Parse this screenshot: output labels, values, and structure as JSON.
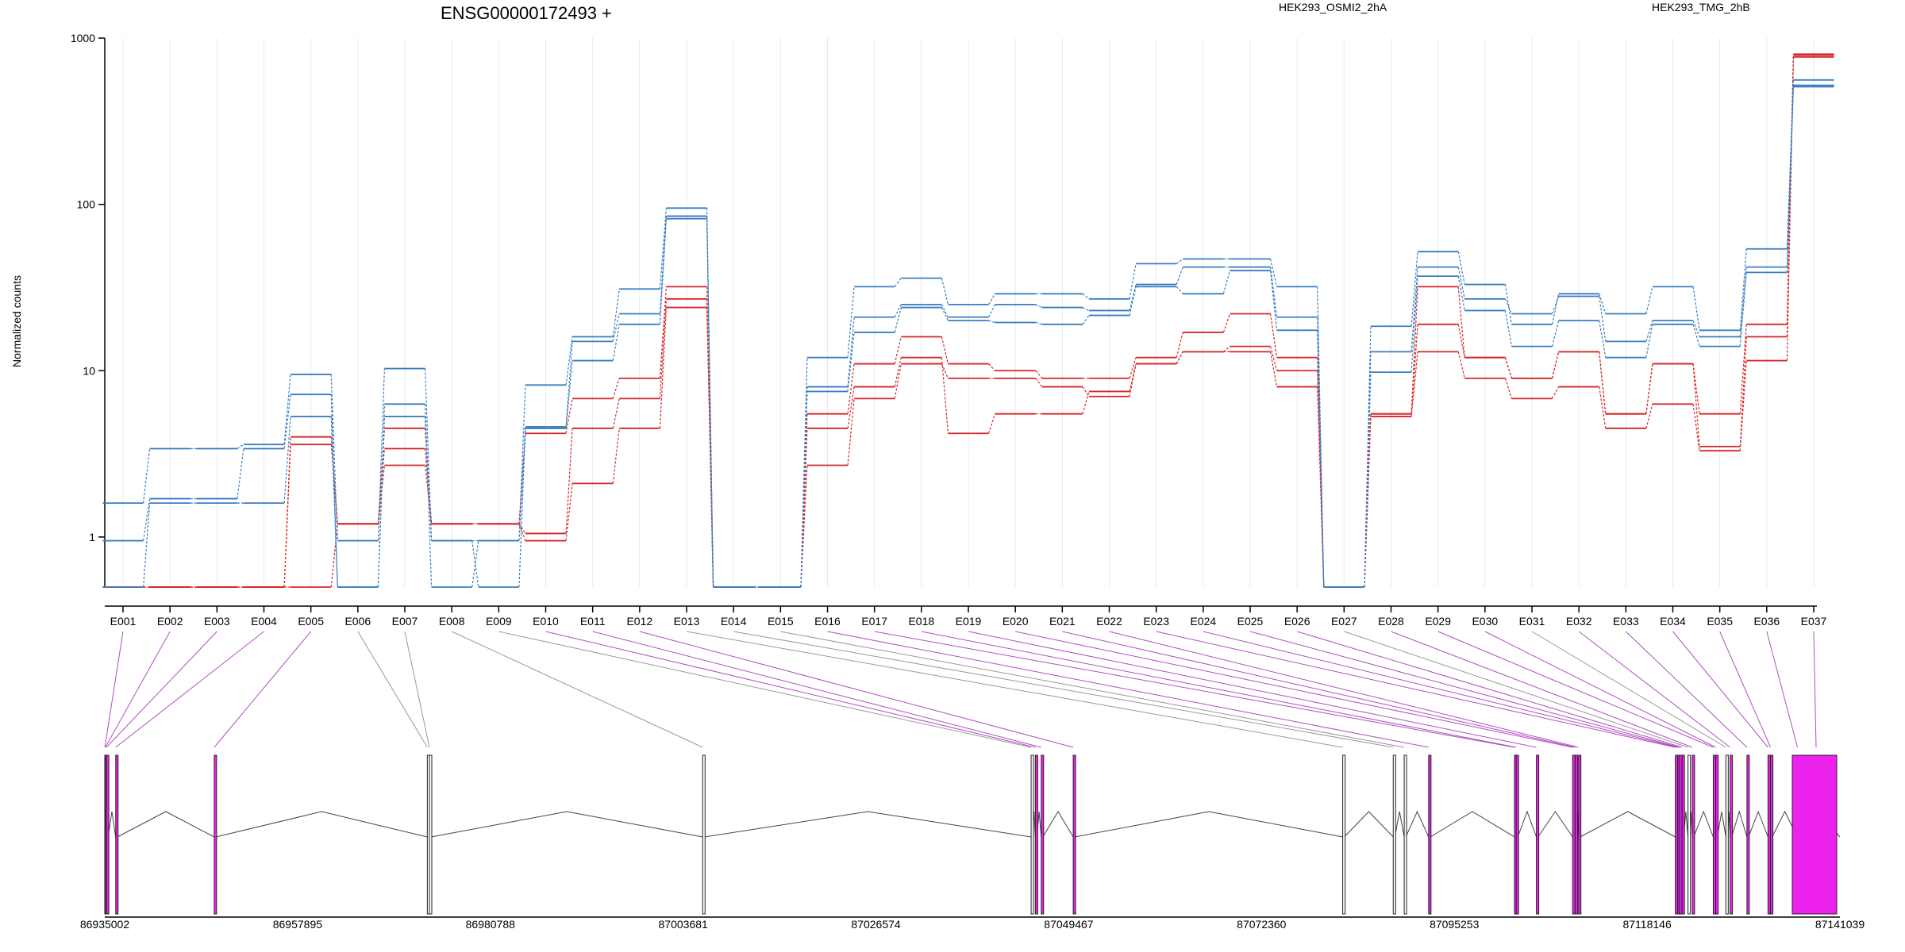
{
  "chart_data": {
    "type": "line",
    "title": "ENSG00000172493 +",
    "ylabel": "Normalized counts",
    "xlabel": "",
    "y_scale": "log",
    "ylim": [
      0.5,
      1000
    ],
    "y_ticks": [
      "1000",
      "100",
      "10",
      "1"
    ],
    "y_tick_values": [
      1000,
      100,
      10,
      1
    ],
    "grid": "vertical lines at each exon",
    "legend_placement": "top",
    "categories": [
      "E001",
      "E002",
      "E003",
      "E004",
      "E005",
      "E006",
      "E007",
      "E008",
      "E009",
      "E010",
      "E011",
      "E012",
      "E013",
      "E014",
      "E015",
      "E016",
      "E017",
      "E018",
      "E019",
      "E020",
      "E021",
      "E022",
      "E023",
      "E024",
      "E025",
      "E026",
      "E027",
      "E028",
      "E029",
      "E030",
      "E031",
      "E032",
      "E033",
      "E034",
      "E035",
      "E036",
      "E037"
    ],
    "series": [
      {
        "name": "HEK293_OSMI2_2hA",
        "color": "#d62728",
        "values": [
          0.5,
          0.5,
          0.5,
          0.5,
          4.0,
          1.2,
          4.5,
          1.2,
          1.2,
          4.2,
          6.8,
          9.0,
          32,
          0.5,
          0.5,
          5.5,
          11,
          16,
          11,
          10,
          9,
          9,
          12,
          17,
          22,
          12,
          0.5,
          5.5,
          32,
          12,
          9,
          13,
          5.5,
          11,
          5.5,
          19,
          800
        ]
      },
      {
        "name": "HEK293_OSMI2_2hA",
        "color": "#d62728",
        "values": [
          0.5,
          0.5,
          0.5,
          0.5,
          3.6,
          1.2,
          3.4,
          1.2,
          1.2,
          1.05,
          4.5,
          6.8,
          27,
          0.5,
          0.5,
          4.5,
          8,
          12,
          4.2,
          5.5,
          5.5,
          7.5,
          11,
          13,
          14,
          10,
          0.5,
          5.5,
          19,
          12,
          9,
          13,
          5.5,
          11,
          3.5,
          16,
          790
        ]
      },
      {
        "name": "HEK293_OSMI2_2hA",
        "color": "#d62728",
        "values": [
          0.5,
          0.5,
          0.5,
          0.5,
          0.5,
          1.2,
          2.7,
          1.2,
          1.2,
          0.95,
          2.1,
          4.5,
          24,
          0.5,
          0.5,
          2.7,
          6.8,
          11,
          9,
          9,
          8,
          7,
          11,
          13,
          13,
          8,
          0.5,
          5.3,
          13,
          9,
          6.8,
          8,
          4.5,
          6.3,
          3.3,
          11.5,
          770
        ]
      },
      {
        "name": "HEK293_TMG_2hB",
        "color": "#3a7dbf",
        "values": [
          1.6,
          3.4,
          3.4,
          3.6,
          9.5,
          0.95,
          10.3,
          0.95,
          0.95,
          8.2,
          16,
          31,
          95,
          0.5,
          0.5,
          12,
          32,
          36,
          25,
          29,
          29,
          27,
          44,
          47,
          47,
          32,
          0.5,
          18.5,
          52,
          33,
          19,
          29,
          22,
          32,
          17.5,
          54,
          560
        ]
      },
      {
        "name": "HEK293_TMG_2hB",
        "color": "#3a7dbf",
        "values": [
          0.95,
          1.7,
          1.7,
          3.4,
          7.2,
          0.5,
          6.3,
          0.5,
          0.95,
          4.6,
          15,
          22,
          85,
          0.5,
          0.5,
          8,
          21,
          25,
          21,
          25,
          24,
          23,
          33,
          42,
          42,
          21,
          0.5,
          13,
          42,
          27,
          22,
          28,
          15,
          20,
          16,
          42,
          520
        ]
      },
      {
        "name": "HEK293_TMG_2hB",
        "color": "#3a7dbf",
        "values": [
          0.5,
          1.6,
          1.6,
          1.6,
          5.3,
          0.5,
          5.3,
          0.95,
          0.5,
          4.5,
          11.5,
          19,
          82,
          0.5,
          0.5,
          7.5,
          17,
          24,
          20,
          19.5,
          19,
          21.5,
          32,
          29,
          40,
          17.5,
          0.5,
          9.8,
          37,
          23,
          14,
          20,
          12,
          19,
          14,
          39,
          510
        ]
      }
    ],
    "legend": [
      {
        "label": "HEK293_OSMI2_2hA",
        "color": "#d62728"
      },
      {
        "label": "HEK293_TMG_2hB",
        "color": "#3a7dbf"
      }
    ],
    "gene_model": {
      "coordinate_labels": [
        "86935002",
        "86957895",
        "86980788",
        "87003681",
        "87026574",
        "87049467",
        "87072360",
        "87095253",
        "87118146",
        "87141039"
      ],
      "coordinate_values": [
        86935002,
        86957895,
        86980788,
        87003681,
        87026574,
        87049467,
        87072360,
        87095253,
        87118146,
        87141039
      ],
      "exon_genomic_starts": [
        86935002,
        86935070,
        86935200,
        86936300,
        86948000,
        86973300,
        86973550,
        87006000,
        87045000,
        87045500,
        87046200,
        87050000,
        87082000,
        87088000,
        87089300,
        87092200,
        87102400,
        87102600,
        87105000,
        87109300,
        87109600,
        87110000,
        87121500,
        87121800,
        87122000,
        87122300,
        87123000,
        87123500,
        87126000,
        87126300,
        87127500,
        87128000,
        87130000,
        87132500,
        87132800,
        87136000,
        87141039
      ],
      "highlighted_exons": [
        "E001",
        "E002",
        "E003",
        "E004",
        "E005",
        "E010",
        "E011",
        "E012",
        "E016",
        "E017",
        "E018",
        "E019",
        "E020",
        "E021",
        "E022",
        "E023",
        "E024",
        "E025",
        "E026",
        "E028",
        "E029",
        "E030",
        "E032",
        "E033",
        "E034",
        "E035",
        "E036",
        "E037"
      ],
      "highlight_color": "#ee22ee",
      "intron_color": "#444444"
    }
  }
}
